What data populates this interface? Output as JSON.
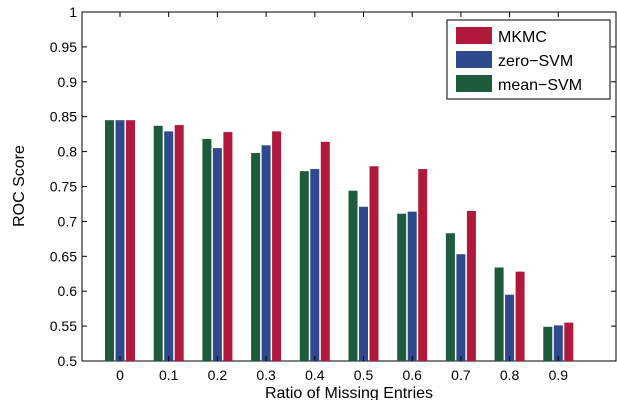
{
  "chart_data": {
    "type": "bar",
    "title": "",
    "xlabel": "Ratio of Missing Entries",
    "ylabel": "ROC Score",
    "ylim": [
      0.5,
      1
    ],
    "yticks": [
      "0.5",
      "0.55",
      "0.6",
      "0.65",
      "0.7",
      "0.75",
      "0.8",
      "0.85",
      "0.9",
      "0.95",
      "1"
    ],
    "categories": [
      "0",
      "0.1",
      "0.2",
      "0.3",
      "0.4",
      "0.5",
      "0.6",
      "0.7",
      "0.8",
      "0.9"
    ],
    "series": [
      {
        "name": "mean−SVM",
        "color": "#1e5a3c",
        "values": [
          0.845,
          0.837,
          0.818,
          0.798,
          0.772,
          0.744,
          0.711,
          0.683,
          0.634,
          0.549
        ]
      },
      {
        "name": "zero−SVM",
        "color": "#2e4a8c",
        "values": [
          0.845,
          0.829,
          0.805,
          0.809,
          0.775,
          0.721,
          0.714,
          0.653,
          0.595,
          0.551
        ]
      },
      {
        "name": "MKMC",
        "color": "#b0183c",
        "values": [
          0.845,
          0.838,
          0.828,
          0.829,
          0.814,
          0.779,
          0.775,
          0.715,
          0.628,
          0.555
        ]
      }
    ],
    "legend_order": [
      "MKMC",
      "zero−SVM",
      "mean−SVM"
    ],
    "legend_position": "top-right",
    "grid": false
  }
}
